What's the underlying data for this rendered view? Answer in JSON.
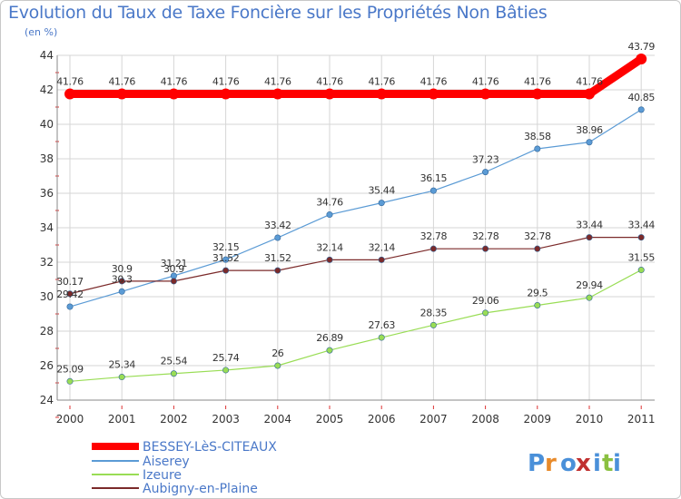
{
  "chart_data": {
    "type": "line",
    "title": "Evolution du Taux de Taxe Foncière sur les Propriétés Non Bâties",
    "ylabel": "(en %)",
    "xlabel": "",
    "x": [
      "2000",
      "2001",
      "2002",
      "2003",
      "2004",
      "2005",
      "2006",
      "2007",
      "2008",
      "2009",
      "2010",
      "2011"
    ],
    "ylim": [
      24,
      44
    ],
    "yticks": [
      24,
      26,
      28,
      30,
      32,
      34,
      36,
      38,
      40,
      42,
      44
    ],
    "grid": true,
    "legend_position": "bottom-left",
    "series": [
      {
        "name": "BESSEY-LèS-CITEAUX",
        "color": "#ff0000",
        "values": [
          41.76,
          41.76,
          41.76,
          41.76,
          41.76,
          41.76,
          41.76,
          41.76,
          41.76,
          41.76,
          41.76,
          43.79
        ],
        "labels": [
          "41.76",
          "41.76",
          "41.76",
          "41.76",
          "41.76",
          "41.76",
          "41.76",
          "41.76",
          "41.76",
          "41.76",
          "41.76",
          "43.79"
        ]
      },
      {
        "name": "Aiserey",
        "color": "#5b9bd5",
        "values": [
          29.42,
          30.3,
          31.21,
          32.15,
          33.42,
          34.76,
          35.44,
          36.15,
          37.23,
          38.58,
          38.96,
          40.85
        ],
        "labels": [
          "29.42",
          "30.3",
          "31.21",
          "32.15",
          "33.42",
          "34.76",
          "35.44",
          "36.15",
          "37.23",
          "38.58",
          "38.96",
          "40.85"
        ]
      },
      {
        "name": "Izeure",
        "color": "#99dd55",
        "values": [
          25.09,
          25.34,
          25.54,
          25.74,
          26,
          26.89,
          27.63,
          28.35,
          29.06,
          29.5,
          29.94,
          31.55
        ],
        "labels": [
          "25.09",
          "25.34",
          "25.54",
          "25.74",
          "26",
          "26.89",
          "27.63",
          "28.35",
          "29.06",
          "29.5",
          "29.94",
          "31.55"
        ]
      },
      {
        "name": "Aubigny-en-Plaine",
        "color": "#7b2a2a",
        "values": [
          30.17,
          30.9,
          30.9,
          31.52,
          31.52,
          32.14,
          32.14,
          32.78,
          32.78,
          32.78,
          33.44,
          33.44
        ],
        "labels": [
          "30.17",
          "30.9",
          "30.9",
          "31.52",
          "31.52",
          "32.14",
          "32.14",
          "32.78",
          "32.78",
          "32.78",
          "33.44",
          "33.44"
        ]
      }
    ]
  },
  "logo": {
    "text": "Proxiti",
    "letters": [
      "P",
      "r",
      "o",
      "x",
      "i",
      "t",
      "i"
    ],
    "colors": [
      "#4a90d9",
      "#e88a2a",
      "#4a90d9",
      "#c03030",
      "#4a90d9",
      "#8ac040",
      "#4a90d9"
    ]
  }
}
